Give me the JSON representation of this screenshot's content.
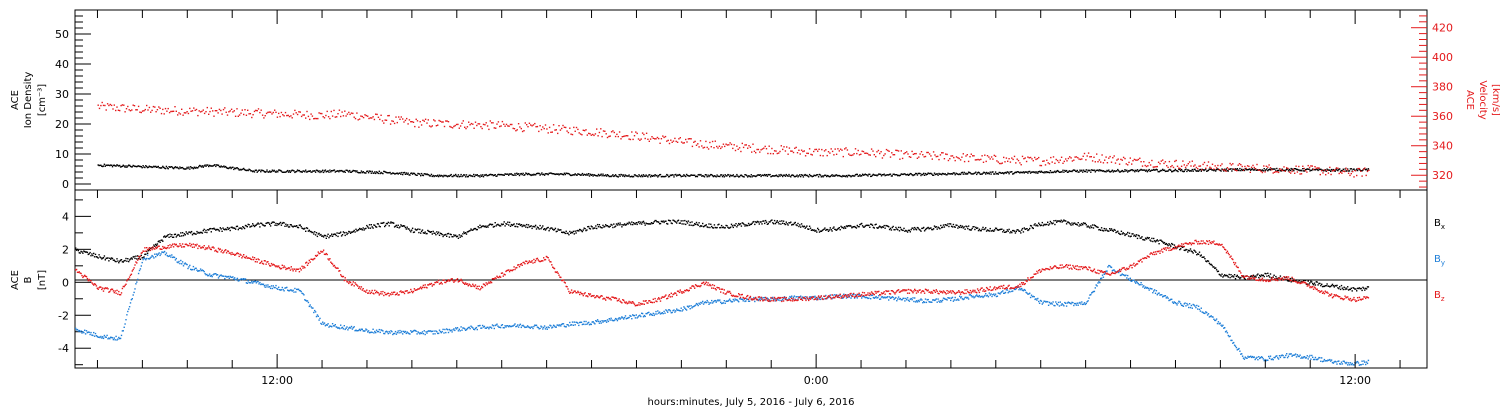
{
  "chart_data": [
    {
      "type": "scatter",
      "panel": "plasma",
      "ylabel": [
        "ACE",
        "Ion Density",
        "[cm⁻³]"
      ],
      "ylim": [
        -2,
        58
      ],
      "yticks": [
        0,
        10,
        20,
        30,
        40,
        50
      ],
      "right_ylabel": [
        "ACE",
        "Velocity",
        "[km/s]"
      ],
      "right_ylim": [
        310,
        432
      ],
      "right_yticks": [
        320,
        340,
        360,
        380,
        400,
        420
      ],
      "colors": {
        "density": "#000000",
        "velocity": "#e41a1c"
      },
      "series": [
        {
          "name": "",
          "axis": "left",
          "color": "#000000",
          "x": [
            8.0,
            9.0,
            10.0,
            10.5,
            11.5,
            12.5,
            13.5,
            14.5,
            15.5,
            16.5,
            17.5,
            18.5,
            19.5,
            20.5,
            21.5,
            22.5,
            23.5,
            24.5,
            25.5,
            26.5,
            27.5,
            28.5,
            29.5,
            30.5,
            31.5,
            32.5,
            33.5,
            34.5,
            35.5,
            36.3
          ],
          "y": [
            6.5,
            6.0,
            5.5,
            6.5,
            4.5,
            4.5,
            4.5,
            4.0,
            3.0,
            3.0,
            3.5,
            3.5,
            3.0,
            3.0,
            3.0,
            3.0,
            3.0,
            3.0,
            3.2,
            3.5,
            3.8,
            4.0,
            4.5,
            4.6,
            4.7,
            4.8,
            5.0,
            5.0,
            4.8,
            5.0
          ]
        },
        {
          "name": "",
          "axis": "right",
          "color": "#e41a1c",
          "x": [
            8.0,
            9.0,
            10.0,
            11.0,
            12.0,
            13.0,
            13.5,
            14.0,
            15.0,
            16.0,
            17.0,
            18.0,
            19.0,
            20.0,
            21.0,
            22.0,
            23.0,
            24.0,
            25.0,
            26.0,
            27.0,
            28.0,
            29.0,
            30.0,
            31.0,
            32.0,
            33.0,
            34.0,
            35.0,
            36.0,
            36.3
          ],
          "y": [
            367,
            365,
            364,
            363,
            362,
            361,
            362,
            360,
            356,
            355,
            354,
            352,
            350,
            347,
            343,
            340,
            338,
            336,
            336,
            334,
            333,
            331,
            330,
            333,
            330,
            328,
            326,
            325,
            324,
            322,
            323
          ]
        }
      ]
    },
    {
      "type": "scatter",
      "panel": "magnetic-field",
      "ylabel": [
        "ACE",
        "B",
        "[nT]"
      ],
      "ylim": [
        -5.2,
        5.6
      ],
      "yticks": [
        -4,
        -2,
        0,
        2,
        4
      ],
      "xlabel": "hours:minutes, July  5, 2016 - July  6, 2016",
      "xlim": [
        7.5,
        37.6
      ],
      "xtick_labels": [
        {
          "x": 12,
          "label": "12:00"
        },
        {
          "x": 24,
          "label": "0:00"
        },
        {
          "x": 36,
          "label": "12:00"
        }
      ],
      "legend": [
        {
          "base": "B",
          "sub": "x",
          "color": "#000000"
        },
        {
          "base": "B",
          "sub": "y",
          "color": "#1f7fd8"
        },
        {
          "base": "B",
          "sub": "z",
          "color": "#e41a1c"
        }
      ],
      "colors": {
        "bx": "#000000",
        "by": "#1f7fd8",
        "bz": "#e41a1c"
      },
      "series": [
        {
          "name": "Bx",
          "color": "#000000",
          "x": [
            7.5,
            8.0,
            8.5,
            9.0,
            9.5,
            10.0,
            10.5,
            11.0,
            11.5,
            12.0,
            12.5,
            13.0,
            13.5,
            14.0,
            14.5,
            15.0,
            15.5,
            16.0,
            16.5,
            17.0,
            17.5,
            18.0,
            18.5,
            19.0,
            19.5,
            20.0,
            20.5,
            21.0,
            21.5,
            22.0,
            22.5,
            23.0,
            23.5,
            24.0,
            24.5,
            25.0,
            25.5,
            26.0,
            26.5,
            27.0,
            27.5,
            28.0,
            28.5,
            29.0,
            29.5,
            30.0,
            30.5,
            31.0,
            31.5,
            32.0,
            32.5,
            33.0,
            33.5,
            34.0,
            34.5,
            35.0,
            35.5,
            36.0,
            36.3
          ],
          "y": [
            2.0,
            1.6,
            1.3,
            1.6,
            2.8,
            3.0,
            3.2,
            3.3,
            3.5,
            3.6,
            3.4,
            2.8,
            3.0,
            3.4,
            3.6,
            3.2,
            3.0,
            2.8,
            3.4,
            3.6,
            3.5,
            3.3,
            3.0,
            3.4,
            3.5,
            3.6,
            3.7,
            3.7,
            3.5,
            3.4,
            3.6,
            3.7,
            3.6,
            3.2,
            3.3,
            3.5,
            3.4,
            3.2,
            3.3,
            3.5,
            3.3,
            3.2,
            3.1,
            3.6,
            3.7,
            3.5,
            3.2,
            2.9,
            2.6,
            2.2,
            1.8,
            0.5,
            0.3,
            0.5,
            0.2,
            0.0,
            -0.2,
            -0.4,
            -0.3
          ]
        },
        {
          "name": "By",
          "color": "#1f7fd8",
          "x": [
            7.5,
            8.0,
            8.5,
            9.0,
            9.5,
            10.0,
            10.5,
            11.0,
            11.5,
            12.0,
            12.5,
            13.0,
            13.5,
            14.0,
            14.5,
            15.0,
            15.5,
            16.0,
            16.5,
            17.0,
            17.5,
            18.0,
            18.5,
            19.0,
            19.5,
            20.0,
            20.5,
            21.0,
            21.5,
            22.0,
            22.5,
            23.0,
            23.5,
            24.0,
            24.5,
            25.0,
            25.5,
            26.0,
            26.5,
            27.0,
            27.5,
            28.0,
            28.5,
            29.0,
            29.5,
            30.0,
            30.5,
            31.0,
            31.5,
            32.0,
            32.5,
            33.0,
            33.5,
            34.0,
            34.5,
            35.0,
            35.5,
            36.0,
            36.3
          ],
          "y": [
            -2.8,
            -3.2,
            -3.4,
            1.5,
            1.8,
            1.0,
            0.5,
            0.3,
            0.0,
            -0.3,
            -0.5,
            -2.5,
            -2.7,
            -2.9,
            -3.0,
            -3.0,
            -3.0,
            -2.8,
            -2.7,
            -2.6,
            -2.6,
            -2.7,
            -2.5,
            -2.4,
            -2.2,
            -2.0,
            -1.8,
            -1.6,
            -1.2,
            -1.1,
            -1.0,
            -1.0,
            -0.9,
            -0.9,
            -0.8,
            -0.8,
            -0.9,
            -1.0,
            -1.1,
            -1.0,
            -0.8,
            -0.7,
            -0.3,
            -1.2,
            -1.3,
            -1.2,
            1.0,
            0.2,
            -0.5,
            -1.2,
            -1.5,
            -2.5,
            -4.5,
            -4.6,
            -4.4,
            -4.5,
            -4.8,
            -4.9,
            -4.8
          ]
        },
        {
          "name": "Bz",
          "color": "#e41a1c",
          "x": [
            7.5,
            8.0,
            8.5,
            9.0,
            9.5,
            10.0,
            10.5,
            11.0,
            11.5,
            12.0,
            12.5,
            13.0,
            13.5,
            14.0,
            14.5,
            15.0,
            15.5,
            16.0,
            16.5,
            17.0,
            17.5,
            18.0,
            18.5,
            19.0,
            19.5,
            20.0,
            20.5,
            21.0,
            21.5,
            22.0,
            22.5,
            23.0,
            23.5,
            24.0,
            24.5,
            25.0,
            25.5,
            26.0,
            26.5,
            27.0,
            27.5,
            28.0,
            28.5,
            29.0,
            29.5,
            30.0,
            30.5,
            31.0,
            31.5,
            32.0,
            32.5,
            33.0,
            33.5,
            34.0,
            34.5,
            35.0,
            35.5,
            36.0,
            36.3
          ],
          "y": [
            0.8,
            -0.3,
            -0.6,
            2.0,
            2.2,
            2.3,
            2.1,
            1.8,
            1.4,
            1.0,
            0.8,
            2.0,
            0.2,
            -0.5,
            -0.7,
            -0.5,
            0.0,
            0.2,
            -0.3,
            0.5,
            1.2,
            1.5,
            -0.5,
            -0.8,
            -1.0,
            -1.3,
            -1.0,
            -0.5,
            0.0,
            -0.6,
            -0.9,
            -1.0,
            -1.0,
            -0.9,
            -0.8,
            -0.7,
            -0.6,
            -0.5,
            -0.5,
            -0.6,
            -0.5,
            -0.3,
            -0.2,
            0.8,
            1.0,
            0.9,
            0.5,
            1.0,
            1.8,
            2.2,
            2.5,
            2.4,
            0.4,
            0.2,
            0.3,
            -0.2,
            -0.8,
            -1.0,
            -0.9
          ]
        }
      ]
    }
  ]
}
